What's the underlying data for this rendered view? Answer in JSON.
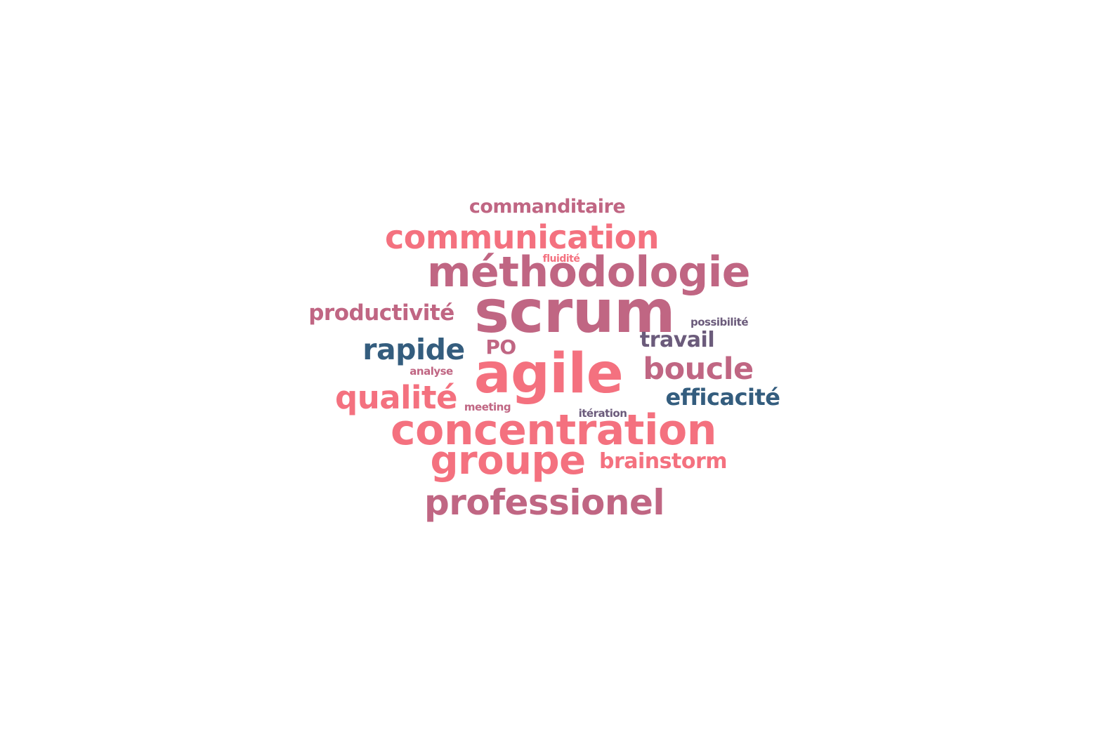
{
  "palette": {
    "coral": "#f4717f",
    "mauve": "#c06683",
    "navy": "#345d7e",
    "plum": "#6b5b7b"
  },
  "words": [
    {
      "id": "commanditaire",
      "text": "commanditaire",
      "color": "mauve"
    },
    {
      "id": "communication",
      "text": "communication",
      "color": "coral"
    },
    {
      "id": "fluidite",
      "text": "fluidité",
      "color": "coral"
    },
    {
      "id": "methodologie",
      "text": "méthodologie",
      "color": "mauve"
    },
    {
      "id": "productivite",
      "text": "productivité",
      "color": "mauve"
    },
    {
      "id": "scrum",
      "text": "scrum",
      "color": "mauve"
    },
    {
      "id": "possibilite",
      "text": "possibilité",
      "color": "plum"
    },
    {
      "id": "travail",
      "text": "travail",
      "color": "plum"
    },
    {
      "id": "rapide",
      "text": "rapide",
      "color": "navy"
    },
    {
      "id": "po",
      "text": "PO",
      "color": "mauve"
    },
    {
      "id": "analyse",
      "text": "analyse",
      "color": "mauve"
    },
    {
      "id": "agile",
      "text": "agile",
      "color": "coral"
    },
    {
      "id": "boucle",
      "text": "boucle",
      "color": "mauve"
    },
    {
      "id": "qualite",
      "text": "qualité",
      "color": "coral"
    },
    {
      "id": "meeting",
      "text": "meeting",
      "color": "mauve"
    },
    {
      "id": "efficacite",
      "text": "efficacité",
      "color": "navy"
    },
    {
      "id": "iteration",
      "text": "itération",
      "color": "plum"
    },
    {
      "id": "concentration",
      "text": "concentration",
      "color": "coral"
    },
    {
      "id": "groupe",
      "text": "groupe",
      "color": "coral"
    },
    {
      "id": "brainstorm",
      "text": "brainstorm",
      "color": "coral"
    },
    {
      "id": "professionel",
      "text": "professionel",
      "color": "mauve"
    }
  ]
}
